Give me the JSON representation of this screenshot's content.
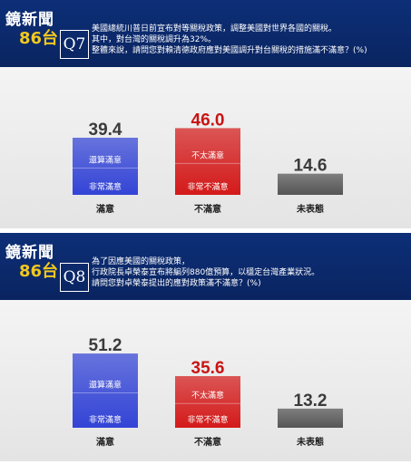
{
  "brand": {
    "line1": "鏡新聞",
    "line2": "86台"
  },
  "panels": [
    {
      "question_no": "Q7",
      "question_lines": [
        "美國總統川普日前宣布對等關稅政策，調整美國對世界各國的關稅。",
        "其中，對台灣的關稅調升為32%。",
        "整體來說，請問您對賴清德政府應對美國調升對台關稅的措施滿不滿意？(%)"
      ]
    },
    {
      "question_no": "Q8",
      "question_lines": [
        "為了因應美國的關稅政策，",
        "行政院長卓榮泰宣布將編列880億預算，以穩定台灣產業狀況。",
        "請問您對卓榮泰提出的應對政策滿不滿意？(%)"
      ]
    }
  ],
  "chart_data": [
    {
      "type": "bar",
      "title": "Q7",
      "categories": [
        "滿意",
        "不滿意",
        "未表態"
      ],
      "values": [
        39.4,
        46.0,
        14.6
      ],
      "value_labels": [
        "39.4",
        "46.0",
        "14.6"
      ],
      "stacks": [
        {
          "category": "滿意",
          "segments": [
            {
              "label": "非常滿意",
              "value": null
            },
            {
              "label": "還算滿意",
              "value": null
            }
          ]
        },
        {
          "category": "不滿意",
          "segments": [
            {
              "label": "非常不滿意",
              "value": null
            },
            {
              "label": "不太滿意",
              "value": null
            }
          ]
        }
      ],
      "colors": {
        "satisfied": "#3344d6",
        "dissatisfied": "#d41a1a",
        "undecided": "#555555"
      },
      "grid": false
    },
    {
      "type": "bar",
      "title": "Q8",
      "categories": [
        "滿意",
        "不滿意",
        "未表態"
      ],
      "values": [
        51.2,
        35.6,
        13.2
      ],
      "value_labels": [
        "51.2",
        "35.6",
        "13.2"
      ],
      "stacks": [
        {
          "category": "滿意",
          "segments": [
            {
              "label": "非常滿意",
              "value": null
            },
            {
              "label": "還算滿意",
              "value": null
            }
          ]
        },
        {
          "category": "不滿意",
          "segments": [
            {
              "label": "非常不滿意",
              "value": null
            },
            {
              "label": "不太滿意",
              "value": null
            }
          ]
        }
      ],
      "colors": {
        "satisfied": "#3344d6",
        "dissatisfied": "#d41a1a",
        "undecided": "#555555"
      },
      "grid": false
    }
  ]
}
